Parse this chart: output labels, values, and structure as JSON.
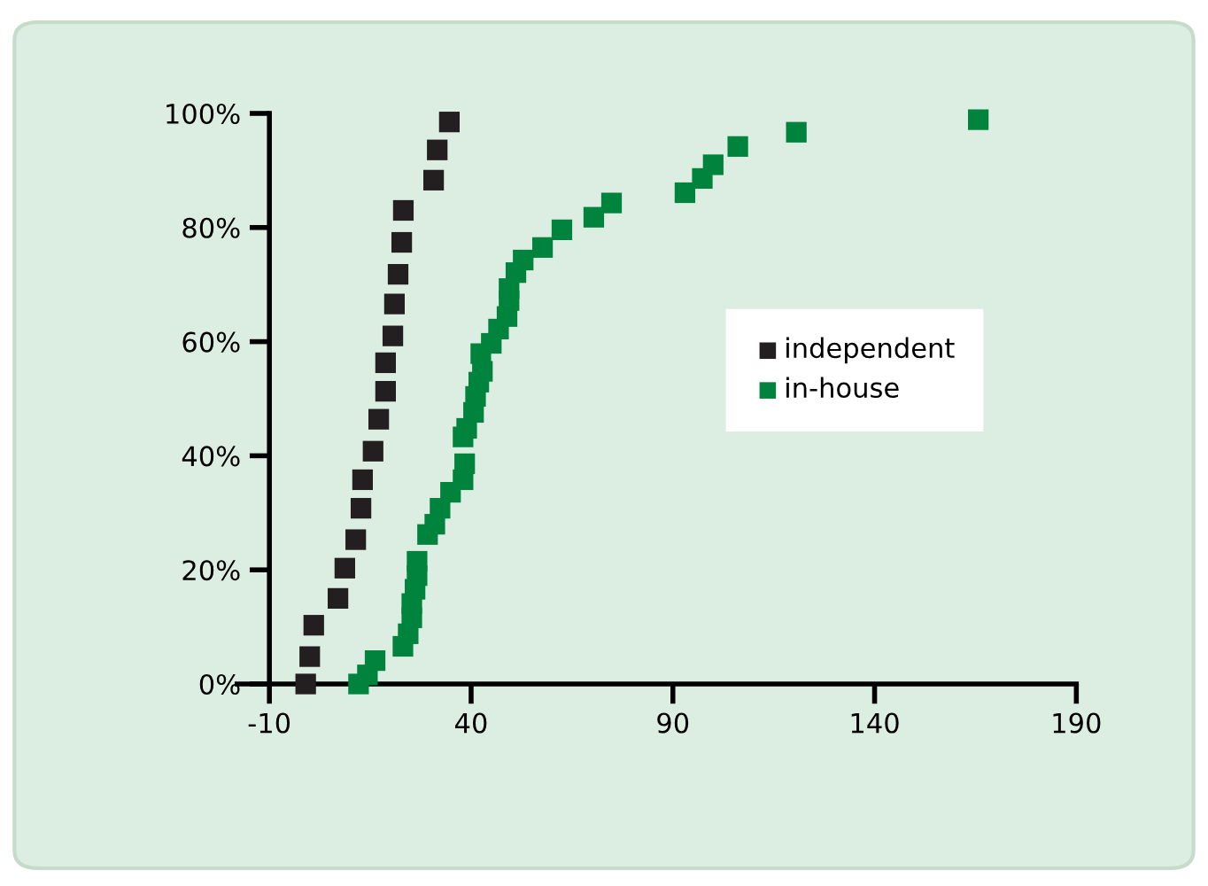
{
  "chart_data": {
    "type": "scatter",
    "marker": "square",
    "legend": "right",
    "grid": false,
    "xlim": [
      -10,
      190
    ],
    "xticks": [
      -10,
      40,
      90,
      140,
      190
    ],
    "ylim": [
      0,
      100
    ],
    "yticks": [
      {
        "value": 0,
        "label": "0%"
      },
      {
        "value": 20,
        "label": "20%"
      },
      {
        "value": 40,
        "label": "40%"
      },
      {
        "value": 60,
        "label": "60%"
      },
      {
        "value": 80,
        "label": "80%"
      },
      {
        "value": 100,
        "label": "100%"
      }
    ],
    "series": [
      {
        "name": "independent",
        "color": "#231f20",
        "x": [
          -1,
          0,
          1,
          7,
          8.7,
          11.4,
          12.7,
          13.1,
          15.7,
          17.1,
          18.8,
          18.8,
          20.6,
          21,
          21.9,
          22.8,
          23.2,
          30.7,
          31.6,
          34.6
        ],
        "values": [
          0,
          4.8,
          10.3,
          15,
          20.3,
          25.3,
          30.8,
          35.8,
          40.8,
          46.4,
          51.3,
          56.3,
          61,
          66.6,
          71.8,
          77.4,
          83,
          88.3,
          93.6,
          98.5
        ]
      },
      {
        "name": "in-house",
        "color": "#00843d",
        "x": [
          12.1,
          14.3,
          16.2,
          23.1,
          24.4,
          25.3,
          25.3,
          26.1,
          26.6,
          26.6,
          29.2,
          31,
          32.3,
          34.9,
          38,
          38.4,
          38,
          38.9,
          40.6,
          41.1,
          41.9,
          42.8,
          42.4,
          45,
          46.8,
          48.9,
          49.4,
          49.4,
          51.1,
          52.9,
          57.7,
          62.5,
          70.4,
          74.8,
          93,
          97.3,
          100,
          106.1,
          120.6,
          165.7
        ],
        "values": [
          0,
          1.6,
          4.1,
          6.6,
          8.8,
          11.6,
          14.1,
          16.6,
          19,
          21.5,
          26.2,
          28,
          30.8,
          33.6,
          35.8,
          38.6,
          43.3,
          44.8,
          47.6,
          50.4,
          52.9,
          54.8,
          57.9,
          59.7,
          62.2,
          64.4,
          67.2,
          69.3,
          72.1,
          74.3,
          76.5,
          79.6,
          81.8,
          84.3,
          86.1,
          88.6,
          91,
          94.2,
          96.7,
          98.9
        ]
      }
    ]
  }
}
